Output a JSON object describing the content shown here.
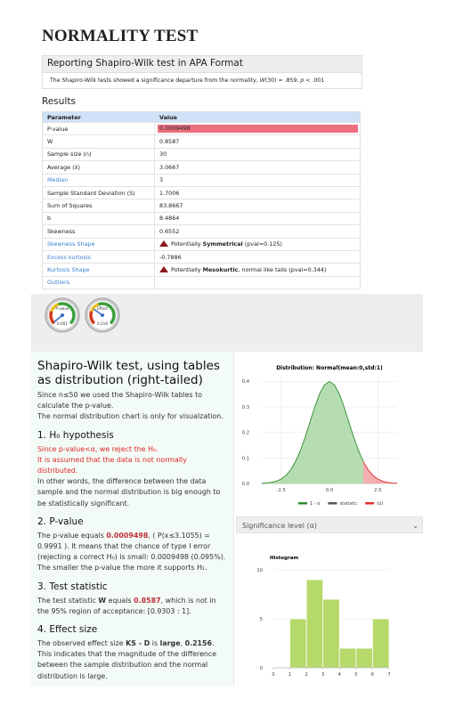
{
  "title": "NORMALITY TEST",
  "apa": {
    "heading": "Reporting Shapiro-Wilk test in APA Format",
    "text": [
      {
        "t": "The Shapiro-Wilk tests showed a significance departure from the normality, "
      },
      {
        "t": "W",
        "s": "i"
      },
      {
        "t": "(30) = .859, "
      },
      {
        "t": "p",
        "s": "i"
      },
      {
        "t": " < .001"
      }
    ]
  },
  "results": {
    "heading": "Results",
    "columns": [
      "Parameter",
      "Value"
    ],
    "rows": [
      {
        "param": "P-value",
        "value": "0.0009498",
        "highlight": "#ec6f80"
      },
      {
        "param": "W",
        "value": "0.8587"
      },
      {
        "param": "Sample size (n)",
        "value": "30"
      },
      {
        "param": "Average (x̄)",
        "value": "3.0667"
      },
      {
        "param": "Median",
        "value": "3",
        "link": true
      },
      {
        "param": "Sample Standard Deviation (S)",
        "value": "1.7006"
      },
      {
        "param": "Sum of Squares",
        "value": "83.8667"
      },
      {
        "param": "b",
        "value": "8.4864"
      },
      {
        "param": "Skewness",
        "value": "0.6552"
      },
      {
        "param": "Skewness Shape",
        "link": true,
        "shape": [
          {
            "t": "Potentially "
          },
          {
            "t": "Symmetrical",
            "s": "b"
          },
          {
            "t": " (pval=0.125)"
          }
        ]
      },
      {
        "param": "Excess kurtosis",
        "value": "-0.7886",
        "link": true
      },
      {
        "param": "Kurtosis Shape",
        "link": true,
        "shape": [
          {
            "t": "Potentially "
          },
          {
            "t": "Mesokurtic",
            "s": "b"
          },
          {
            "t": ", normal like tails (pval=0.344)"
          }
        ]
      },
      {
        "param": "Outliers",
        "link": true
      }
    ]
  },
  "gauges": [
    {
      "label": "P-value",
      "value": "0.001"
    },
    {
      "label": "Effect",
      "value": "0.216"
    }
  ],
  "report": {
    "heading": "Shapiro-Wilk test, using tables as distribution (right-tailed)",
    "intro": [
      [
        {
          "t": "Since n≤50 we used the Shapiro-Wilk tables to calculate the p-value."
        }
      ],
      [
        {
          "t": "The normal distribution chart is only for visualzation."
        }
      ]
    ],
    "sections": [
      {
        "heading": "1. H₀ hypothesis",
        "paragraphs": [
          [
            {
              "t": "Since p-value<α, we reject the H₀.",
              "s": "r"
            }
          ],
          [
            {
              "t": "It is assumed that the data is not normally distributed.",
              "s": "r"
            }
          ],
          [
            {
              "t": "In other words, the difference between the data sample and the normal distribution is big enough to be statistically significant."
            }
          ]
        ]
      },
      {
        "heading": "2. P-value",
        "paragraphs": [
          [
            {
              "t": "The p-value equals "
            },
            {
              "t": "0.0009498",
              "s": "rb"
            },
            {
              "t": ", ( P(x≤3.1055) = 0.9991 ). It means that the chance of type I error (rejecting a correct H₀) is small: 0.0009498 (0.095%). The smaller the p-value the more it supports H₁."
            }
          ]
        ]
      },
      {
        "heading": "3. Test statistic",
        "paragraphs": [
          [
            {
              "t": "The test statistic "
            },
            {
              "t": "W",
              "s": "b"
            },
            {
              "t": " equals "
            },
            {
              "t": "0.8587",
              "s": "rb"
            },
            {
              "t": ", which is not in the 95% region of acceptance: [0.9303 : 1]."
            }
          ]
        ]
      },
      {
        "heading": "4. Effect size",
        "paragraphs": [
          [
            {
              "t": "The observed effect size "
            },
            {
              "t": "KS - D",
              "s": "b"
            },
            {
              "t": " is "
            },
            {
              "t": "large",
              "s": "b"
            },
            {
              "t": ", "
            },
            {
              "t": "0.2156",
              "s": "b"
            },
            {
              "t": ". This indicates that the magnitude of the difference between the sample distribution and the normal distribution is large."
            }
          ]
        ]
      }
    ]
  },
  "select": "Significance level (α)",
  "chart_data": [
    {
      "type": "area",
      "title": "Distribution: Normal(mean:0,std:1)",
      "xlim": [
        -3.5,
        3.5
      ],
      "ylim": [
        0,
        0.42
      ],
      "xticks": [
        -2.5,
        {
          "value": 0,
          "label": "0.0"
        },
        2.5
      ],
      "yticks": [
        {
          "value": 0,
          "label": "0.0"
        },
        0.1,
        0.2,
        0.3,
        0.4
      ],
      "grid": true,
      "series": [
        {
          "name": "1 - α",
          "color": "#2e8b2e",
          "fill": "#a9d7a3",
          "x": [
            -3.5,
            -3.25,
            -3,
            -2.75,
            -2.5,
            -2.25,
            -2,
            -1.75,
            -1.5,
            -1.25,
            -1,
            -0.75,
            -0.5,
            -0.25,
            0,
            0.25,
            0.5,
            0.75,
            1,
            1.25,
            1.5,
            1.75
          ],
          "values": [
            0.0009,
            0.002,
            0.0044,
            0.0091,
            0.0175,
            0.0317,
            0.054,
            0.0863,
            0.1295,
            0.1826,
            0.242,
            0.3011,
            0.3521,
            0.3867,
            0.3989,
            0.3867,
            0.3521,
            0.3011,
            0.242,
            0.1826,
            0.1295,
            0.0863
          ]
        },
        {
          "name": "statistic",
          "color": "#555555",
          "x": [],
          "values": []
        },
        {
          "name": "(α)",
          "color": "#e03030",
          "fill": "#f2a0a0",
          "x": [
            1.75,
            2,
            2.25,
            2.5,
            2.75,
            3,
            3.25,
            3.5
          ],
          "values": [
            0.0863,
            0.054,
            0.0317,
            0.0175,
            0.0091,
            0.0044,
            0.002,
            0.0009
          ]
        }
      ]
    },
    {
      "type": "histogram",
      "title": "Histogram",
      "bins": [
        1,
        2,
        3,
        4,
        5,
        6,
        7
      ],
      "values": [
        5,
        9,
        7,
        2,
        2,
        5
      ],
      "color": "#b5d96a",
      "xlim": [
        0,
        7
      ],
      "ylim": [
        0,
        10
      ],
      "xticks": [
        0,
        1,
        2,
        3,
        4,
        5,
        6,
        7
      ],
      "yticks": [
        0,
        5,
        10
      ],
      "grid": true
    }
  ]
}
